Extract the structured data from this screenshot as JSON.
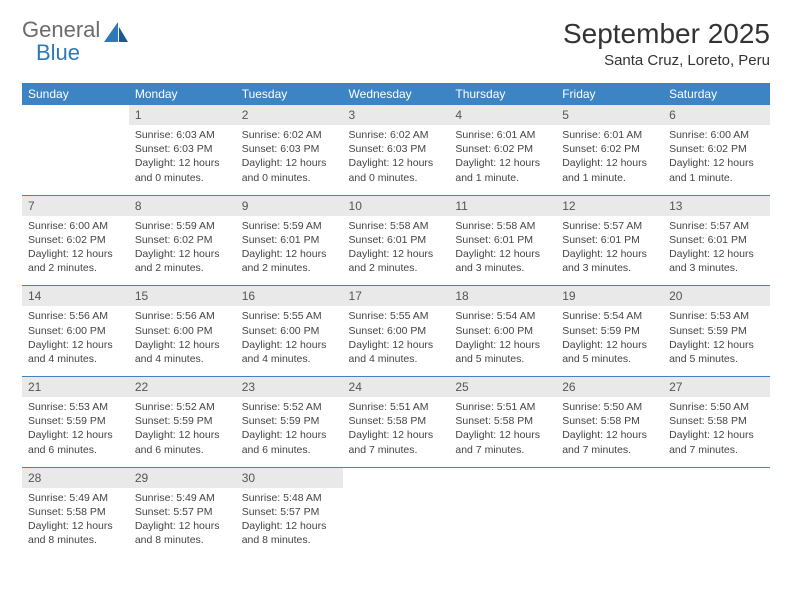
{
  "logo": {
    "word1": "General",
    "word2": "Blue"
  },
  "title": "September 2025",
  "subtitle": "Santa Cruz, Loreto, Peru",
  "colors": {
    "header_bg": "#3d84c4",
    "header_text": "#ffffff",
    "daynum_bg": "#e9e9e9",
    "text": "#444444",
    "rule": "#3d84c4",
    "logo_gray": "#6b6b6b",
    "logo_blue": "#2e79b8"
  },
  "days_of_week": [
    "Sunday",
    "Monday",
    "Tuesday",
    "Wednesday",
    "Thursday",
    "Friday",
    "Saturday"
  ],
  "weeks": [
    [
      null,
      {
        "n": "1",
        "sunrise": "6:03 AM",
        "sunset": "6:03 PM",
        "daylight": "12 hours and 0 minutes."
      },
      {
        "n": "2",
        "sunrise": "6:02 AM",
        "sunset": "6:03 PM",
        "daylight": "12 hours and 0 minutes."
      },
      {
        "n": "3",
        "sunrise": "6:02 AM",
        "sunset": "6:03 PM",
        "daylight": "12 hours and 0 minutes."
      },
      {
        "n": "4",
        "sunrise": "6:01 AM",
        "sunset": "6:02 PM",
        "daylight": "12 hours and 1 minute."
      },
      {
        "n": "5",
        "sunrise": "6:01 AM",
        "sunset": "6:02 PM",
        "daylight": "12 hours and 1 minute."
      },
      {
        "n": "6",
        "sunrise": "6:00 AM",
        "sunset": "6:02 PM",
        "daylight": "12 hours and 1 minute."
      }
    ],
    [
      {
        "n": "7",
        "sunrise": "6:00 AM",
        "sunset": "6:02 PM",
        "daylight": "12 hours and 2 minutes."
      },
      {
        "n": "8",
        "sunrise": "5:59 AM",
        "sunset": "6:02 PM",
        "daylight": "12 hours and 2 minutes."
      },
      {
        "n": "9",
        "sunrise": "5:59 AM",
        "sunset": "6:01 PM",
        "daylight": "12 hours and 2 minutes."
      },
      {
        "n": "10",
        "sunrise": "5:58 AM",
        "sunset": "6:01 PM",
        "daylight": "12 hours and 2 minutes."
      },
      {
        "n": "11",
        "sunrise": "5:58 AM",
        "sunset": "6:01 PM",
        "daylight": "12 hours and 3 minutes."
      },
      {
        "n": "12",
        "sunrise": "5:57 AM",
        "sunset": "6:01 PM",
        "daylight": "12 hours and 3 minutes."
      },
      {
        "n": "13",
        "sunrise": "5:57 AM",
        "sunset": "6:01 PM",
        "daylight": "12 hours and 3 minutes."
      }
    ],
    [
      {
        "n": "14",
        "sunrise": "5:56 AM",
        "sunset": "6:00 PM",
        "daylight": "12 hours and 4 minutes."
      },
      {
        "n": "15",
        "sunrise": "5:56 AM",
        "sunset": "6:00 PM",
        "daylight": "12 hours and 4 minutes."
      },
      {
        "n": "16",
        "sunrise": "5:55 AM",
        "sunset": "6:00 PM",
        "daylight": "12 hours and 4 minutes."
      },
      {
        "n": "17",
        "sunrise": "5:55 AM",
        "sunset": "6:00 PM",
        "daylight": "12 hours and 4 minutes."
      },
      {
        "n": "18",
        "sunrise": "5:54 AM",
        "sunset": "6:00 PM",
        "daylight": "12 hours and 5 minutes."
      },
      {
        "n": "19",
        "sunrise": "5:54 AM",
        "sunset": "5:59 PM",
        "daylight": "12 hours and 5 minutes."
      },
      {
        "n": "20",
        "sunrise": "5:53 AM",
        "sunset": "5:59 PM",
        "daylight": "12 hours and 5 minutes."
      }
    ],
    [
      {
        "n": "21",
        "sunrise": "5:53 AM",
        "sunset": "5:59 PM",
        "daylight": "12 hours and 6 minutes."
      },
      {
        "n": "22",
        "sunrise": "5:52 AM",
        "sunset": "5:59 PM",
        "daylight": "12 hours and 6 minutes."
      },
      {
        "n": "23",
        "sunrise": "5:52 AM",
        "sunset": "5:59 PM",
        "daylight": "12 hours and 6 minutes."
      },
      {
        "n": "24",
        "sunrise": "5:51 AM",
        "sunset": "5:58 PM",
        "daylight": "12 hours and 7 minutes."
      },
      {
        "n": "25",
        "sunrise": "5:51 AM",
        "sunset": "5:58 PM",
        "daylight": "12 hours and 7 minutes."
      },
      {
        "n": "26",
        "sunrise": "5:50 AM",
        "sunset": "5:58 PM",
        "daylight": "12 hours and 7 minutes."
      },
      {
        "n": "27",
        "sunrise": "5:50 AM",
        "sunset": "5:58 PM",
        "daylight": "12 hours and 7 minutes."
      }
    ],
    [
      {
        "n": "28",
        "sunrise": "5:49 AM",
        "sunset": "5:58 PM",
        "daylight": "12 hours and 8 minutes."
      },
      {
        "n": "29",
        "sunrise": "5:49 AM",
        "sunset": "5:57 PM",
        "daylight": "12 hours and 8 minutes."
      },
      {
        "n": "30",
        "sunrise": "5:48 AM",
        "sunset": "5:57 PM",
        "daylight": "12 hours and 8 minutes."
      },
      null,
      null,
      null,
      null
    ]
  ],
  "labels": {
    "sunrise": "Sunrise: ",
    "sunset": "Sunset: ",
    "daylight": "Daylight: "
  }
}
